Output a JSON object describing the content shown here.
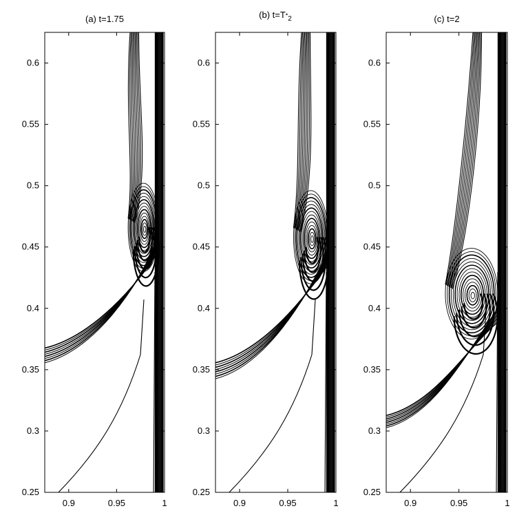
{
  "chart_data": [
    {
      "type": "contour",
      "title": "(a) t=1.75",
      "xlim": [
        0.875,
        1.0
      ],
      "ylim": [
        0.25,
        0.625
      ],
      "xticks": [
        0.9,
        0.95,
        1
      ],
      "xtick_labels": [
        "0.9",
        "0.95",
        "1"
      ],
      "yticks": [
        0.25,
        0.3,
        0.35,
        0.4,
        0.45,
        0.5,
        0.55,
        0.6
      ],
      "ytick_labels": [
        "0.25",
        "0.3",
        "0.35",
        "0.4",
        "0.45",
        "0.5",
        "0.55",
        "0.6"
      ],
      "vortex_center": [
        0.978,
        0.466
      ],
      "vortex_radius": [
        0.016,
        0.036
      ],
      "shear_layer_left_y": [
        0.355,
        0.367
      ],
      "grid": false
    },
    {
      "type": "contour",
      "title": "(b) t=T",
      "title_sub": "2",
      "title_sup": "*",
      "xlim": [
        0.875,
        1.0
      ],
      "ylim": [
        0.25,
        0.625
      ],
      "xticks": [
        0.9,
        0.95,
        1
      ],
      "xtick_labels": [
        "0.9",
        "0.95",
        "1"
      ],
      "yticks": [
        0.25,
        0.3,
        0.35,
        0.4,
        0.45,
        0.5,
        0.55,
        0.6
      ],
      "ytick_labels": [
        "0.25",
        "0.3",
        "0.35",
        "0.4",
        "0.45",
        "0.5",
        "0.55",
        "0.6"
      ],
      "vortex_center": [
        0.974,
        0.458
      ],
      "vortex_radius": [
        0.018,
        0.038
      ],
      "shear_layer_left_y": [
        0.342,
        0.355
      ],
      "grid": false
    },
    {
      "type": "contour",
      "title": "(c) t=2",
      "xlim": [
        0.875,
        1.0
      ],
      "ylim": [
        0.25,
        0.625
      ],
      "xticks": [
        0.9,
        0.95,
        1
      ],
      "xtick_labels": [
        "0.9",
        "0.95",
        "1"
      ],
      "yticks": [
        0.25,
        0.3,
        0.35,
        0.4,
        0.45,
        0.5,
        0.55,
        0.6
      ],
      "ytick_labels": [
        "0.25",
        "0.3",
        "0.35",
        "0.4",
        "0.45",
        "0.5",
        "0.55",
        "0.6"
      ],
      "vortex_center": [
        0.963,
        0.412
      ],
      "vortex_radius": [
        0.027,
        0.037
      ],
      "shear_layer_left_y": [
        0.302,
        0.312
      ],
      "grid": false
    }
  ]
}
